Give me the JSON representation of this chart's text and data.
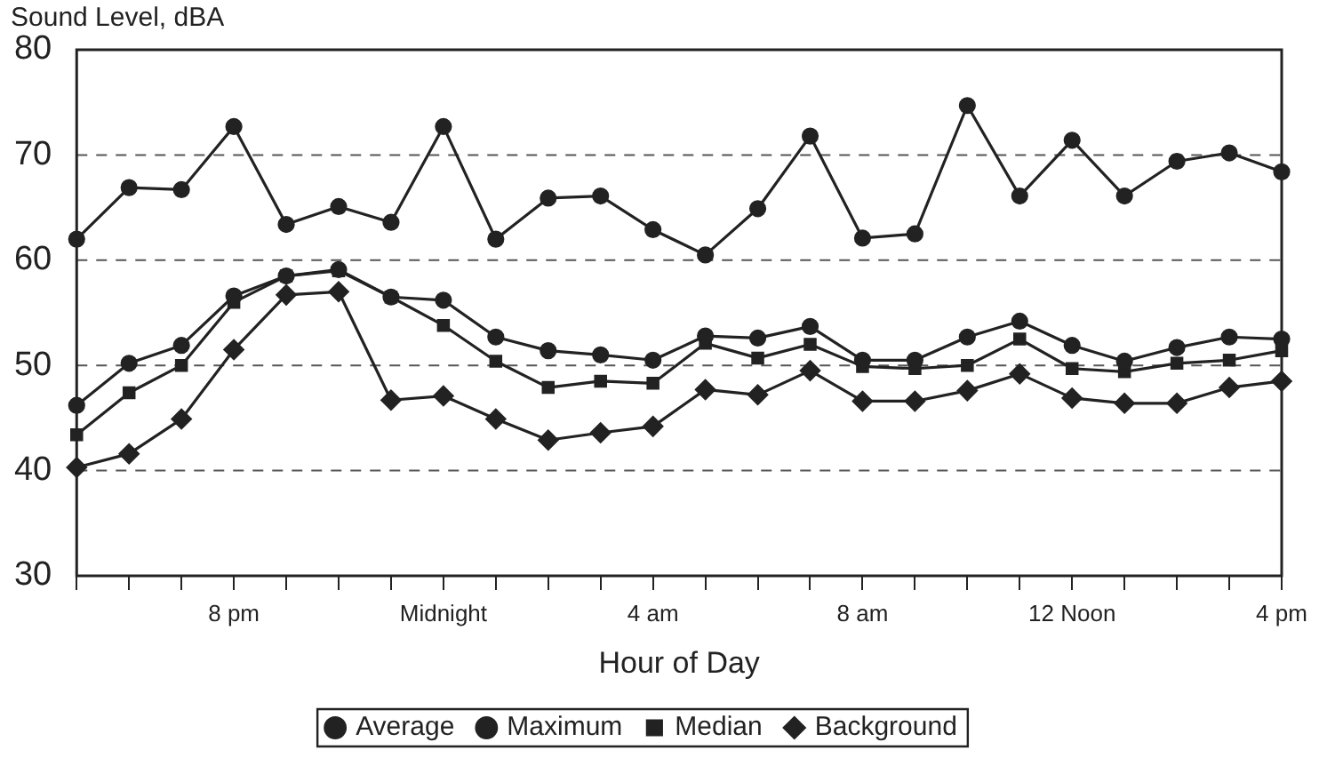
{
  "chart_data": {
    "type": "line",
    "ylabel": "Sound Level, dBA",
    "xlabel": "Hour of Day",
    "categories": [
      null,
      null,
      null,
      "8 pm",
      null,
      null,
      null,
      "Midnight",
      null,
      null,
      null,
      "4 am",
      null,
      null,
      null,
      "8 am",
      null,
      null,
      null,
      "12 Noon",
      null,
      null,
      null,
      "4 pm"
    ],
    "series": [
      {
        "name": "Average",
        "color": "#222222",
        "marker": "circle",
        "values": [
          46.2,
          50.2,
          51.9,
          56.6,
          58.5,
          59.1,
          56.5,
          56.2,
          52.7,
          51.4,
          51.0,
          50.5,
          52.8,
          52.6,
          53.7,
          50.5,
          50.5,
          52.7,
          54.2,
          51.9,
          50.4,
          51.7,
          52.7,
          52.5
        ]
      },
      {
        "name": "Maximum",
        "color": "#222222",
        "marker": "circle",
        "values": [
          62.0,
          66.9,
          66.7,
          72.7,
          63.4,
          65.1,
          63.6,
          72.7,
          62.0,
          65.9,
          66.1,
          62.9,
          60.5,
          64.9,
          71.8,
          62.1,
          62.5,
          74.7,
          66.1,
          71.4,
          66.1,
          69.4,
          70.2,
          68.4
        ]
      },
      {
        "name": "Median",
        "color": "#222222",
        "marker": "square",
        "values": [
          43.4,
          47.4,
          50.0,
          56.0,
          58.5,
          59.0,
          56.5,
          53.8,
          50.4,
          47.9,
          48.5,
          48.3,
          52.1,
          50.7,
          52.0,
          49.9,
          49.7,
          50.0,
          52.5,
          49.7,
          49.4,
          50.2,
          50.5,
          51.4
        ]
      },
      {
        "name": "Background",
        "color": "#222222",
        "marker": "diamond",
        "values": [
          40.3,
          41.6,
          44.9,
          51.5,
          56.7,
          57.0,
          46.7,
          47.1,
          44.9,
          42.9,
          43.6,
          44.2,
          47.7,
          47.2,
          49.5,
          46.6,
          46.6,
          47.6,
          49.2,
          46.9,
          46.4,
          46.4,
          47.9,
          48.5
        ]
      }
    ],
    "ylim": [
      30,
      80
    ],
    "yticks": [
      30,
      40,
      50,
      60,
      70,
      80
    ],
    "grid": "y",
    "legend": "bottom",
    "line_style": "solid"
  }
}
